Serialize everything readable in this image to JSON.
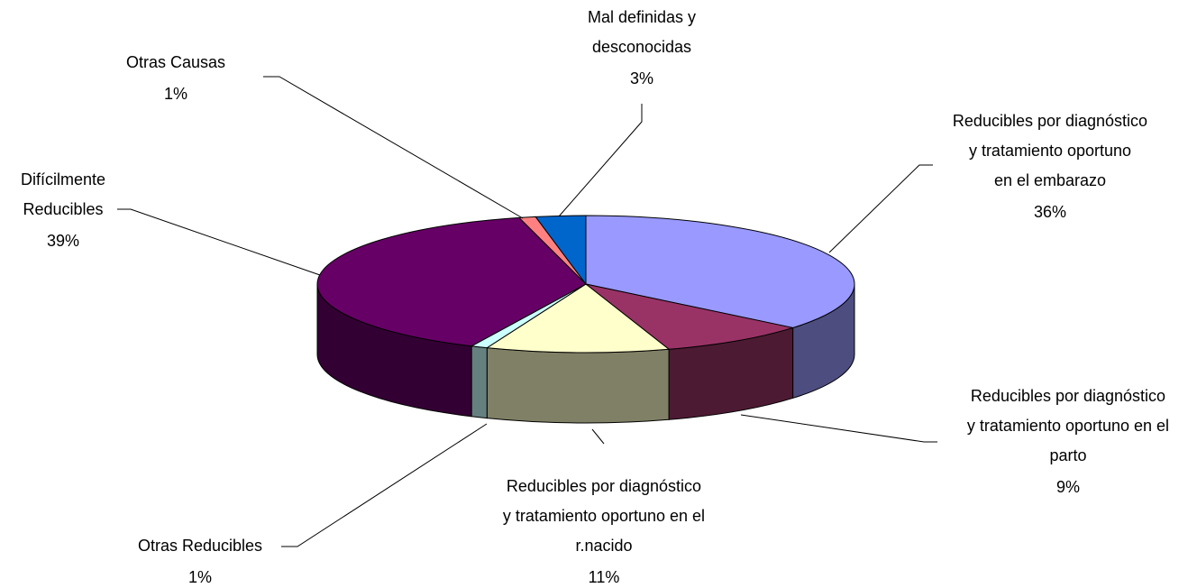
{
  "chart_data": {
    "type": "pie3d",
    "categories": [
      [
        "Reducibles por diagnóstico",
        "y  tratamiento oportuno",
        "en el embarazo"
      ],
      [
        "Reducibles por diagnóstico",
        "y tratamiento oportuno en el",
        "parto"
      ],
      [
        "Reducibles por diagnóstico",
        "y tratamiento oportuno en el",
        "r.nacido"
      ],
      [
        "Otras Reducibles"
      ],
      [
        "Difícilmente",
        "Reducibles"
      ],
      [
        "Otras Causas"
      ],
      [
        "Mal definidas y",
        "desconocidas"
      ]
    ],
    "values": [
      36,
      9,
      11,
      1,
      39,
      1,
      3
    ],
    "value_labels": [
      "36%",
      "9%",
      "11%",
      "1%",
      "39%",
      "1%",
      "3%"
    ],
    "colors": [
      "#9999FF",
      "#993366",
      "#FFFFCC",
      "#CCFFFF",
      "#660066",
      "#FF8080",
      "#0066CC"
    ]
  }
}
